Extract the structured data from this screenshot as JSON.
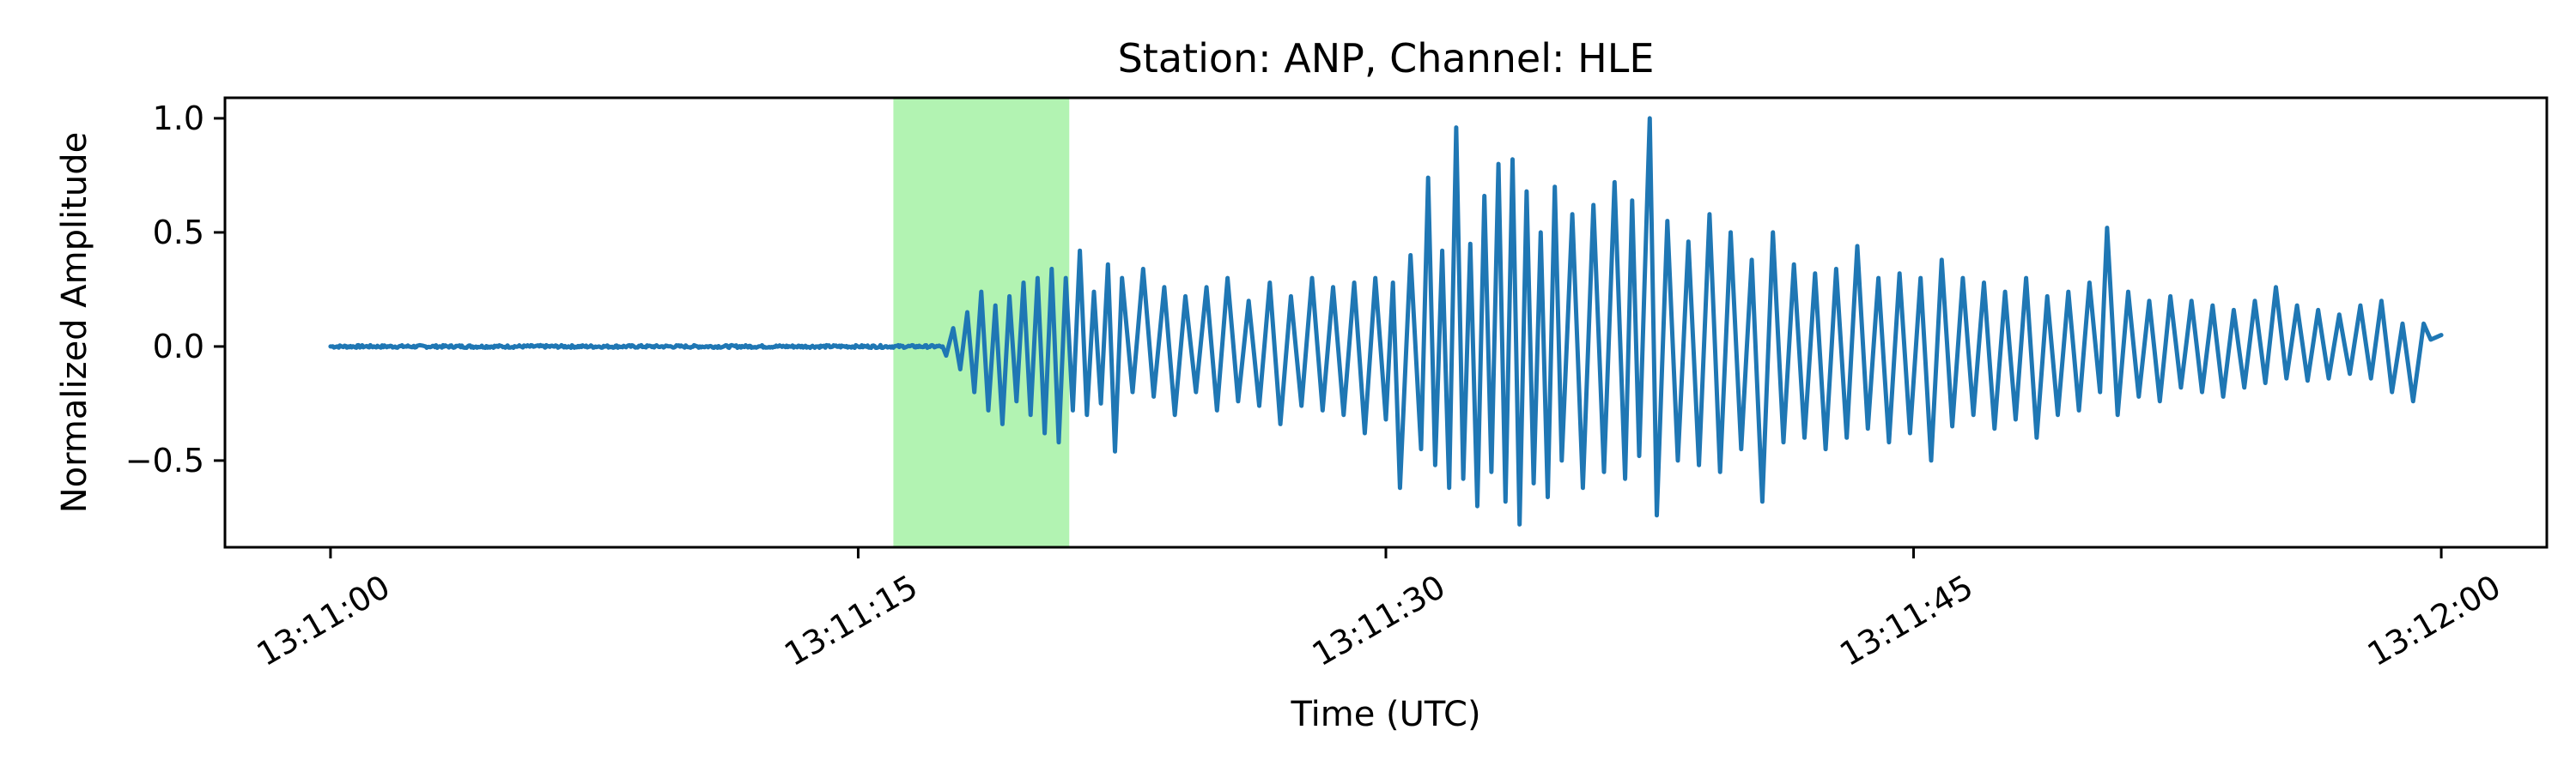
{
  "chart_data": {
    "type": "line",
    "title": "Station: ANP, Channel: HLE",
    "xlabel": "Time (UTC)",
    "ylabel": "Normalized Amplitude",
    "x_start": "13:11:00",
    "x_end": "13:12:00",
    "xlim": [
      "13:10:57",
      "13:12:03"
    ],
    "ylim": [
      -0.88,
      1.09
    ],
    "x_ticks": [
      "13:11:00",
      "13:11:15",
      "13:11:30",
      "13:11:45",
      "13:12:00"
    ],
    "y_ticks": [
      -0.5,
      0.0,
      0.5,
      1.0
    ],
    "y_tick_labels": [
      "−0.5",
      "0.0",
      "0.5",
      "1.0"
    ],
    "highlight_span": {
      "start": "13:11:16",
      "end": "13:11:21",
      "color": "#b2f3b2"
    },
    "series_color": "#1f77b4",
    "grid": false,
    "series": [
      {
        "points": [
          [
            "13:11:00",
            0.0
          ],
          [
            "13:11:05",
            0.0
          ],
          [
            "13:11:10",
            0.0
          ],
          [
            "13:11:15",
            0.0
          ],
          [
            "13:11:17.4",
            0.0
          ],
          [
            "13:11:17.5",
            -0.04
          ],
          [
            "13:11:17.7",
            0.08
          ],
          [
            "13:11:17.9",
            -0.1
          ],
          [
            "13:11:18.1",
            0.15
          ],
          [
            "13:11:18.3",
            -0.2
          ],
          [
            "13:11:18.5",
            0.24
          ],
          [
            "13:11:18.7",
            -0.28
          ],
          [
            "13:11:18.9",
            0.18
          ],
          [
            "13:11:19.1",
            -0.34
          ],
          [
            "13:11:19.3",
            0.22
          ],
          [
            "13:11:19.5",
            -0.24
          ],
          [
            "13:11:19.7",
            0.28
          ],
          [
            "13:11:19.9",
            -0.3
          ],
          [
            "13:11:20.1",
            0.3
          ],
          [
            "13:11:20.3",
            -0.38
          ],
          [
            "13:11:20.5",
            0.34
          ],
          [
            "13:11:20.7",
            -0.42
          ],
          [
            "13:11:20.9",
            0.3
          ],
          [
            "13:11:21.1",
            -0.28
          ],
          [
            "13:11:21.3",
            0.42
          ],
          [
            "13:11:21.5",
            -0.3
          ],
          [
            "13:11:21.7",
            0.24
          ],
          [
            "13:11:21.9",
            -0.25
          ],
          [
            "13:11:22.1",
            0.36
          ],
          [
            "13:11:22.3",
            -0.46
          ],
          [
            "13:11:22.5",
            0.3
          ],
          [
            "13:11:22.8",
            -0.2
          ],
          [
            "13:11:23.1",
            0.34
          ],
          [
            "13:11:23.4",
            -0.22
          ],
          [
            "13:11:23.7",
            0.26
          ],
          [
            "13:11:24.0",
            -0.3
          ],
          [
            "13:11:24.3",
            0.22
          ],
          [
            "13:11:24.6",
            -0.2
          ],
          [
            "13:11:24.9",
            0.26
          ],
          [
            "13:11:25.2",
            -0.28
          ],
          [
            "13:11:25.5",
            0.3
          ],
          [
            "13:11:25.8",
            -0.24
          ],
          [
            "13:11:26.1",
            0.2
          ],
          [
            "13:11:26.4",
            -0.26
          ],
          [
            "13:11:26.7",
            0.28
          ],
          [
            "13:11:27.0",
            -0.34
          ],
          [
            "13:11:27.3",
            0.22
          ],
          [
            "13:11:27.6",
            -0.26
          ],
          [
            "13:11:27.9",
            0.3
          ],
          [
            "13:11:28.2",
            -0.28
          ],
          [
            "13:11:28.5",
            0.26
          ],
          [
            "13:11:28.8",
            -0.3
          ],
          [
            "13:11:29.1",
            0.28
          ],
          [
            "13:11:29.4",
            -0.38
          ],
          [
            "13:11:29.7",
            0.3
          ],
          [
            "13:11:30.0",
            -0.32
          ],
          [
            "13:11:30.2",
            0.28
          ],
          [
            "13:11:30.4",
            -0.62
          ],
          [
            "13:11:30.7",
            0.4
          ],
          [
            "13:11:31.0",
            -0.45
          ],
          [
            "13:11:31.2",
            0.74
          ],
          [
            "13:11:31.4",
            -0.52
          ],
          [
            "13:11:31.6",
            0.42
          ],
          [
            "13:11:31.8",
            -0.62
          ],
          [
            "13:11:32.0",
            0.96
          ],
          [
            "13:11:32.2",
            -0.58
          ],
          [
            "13:11:32.4",
            0.45
          ],
          [
            "13:11:32.6",
            -0.7
          ],
          [
            "13:11:32.8",
            0.66
          ],
          [
            "13:11:33.0",
            -0.55
          ],
          [
            "13:11:33.2",
            0.8
          ],
          [
            "13:11:33.4",
            -0.68
          ],
          [
            "13:11:33.6",
            0.82
          ],
          [
            "13:11:33.8",
            -0.78
          ],
          [
            "13:11:34.0",
            0.68
          ],
          [
            "13:11:34.2",
            -0.6
          ],
          [
            "13:11:34.4",
            0.5
          ],
          [
            "13:11:34.6",
            -0.66
          ],
          [
            "13:11:34.8",
            0.7
          ],
          [
            "13:11:35.0",
            -0.5
          ],
          [
            "13:11:35.3",
            0.58
          ],
          [
            "13:11:35.6",
            -0.62
          ],
          [
            "13:11:35.9",
            0.62
          ],
          [
            "13:11:36.2",
            -0.55
          ],
          [
            "13:11:36.5",
            0.72
          ],
          [
            "13:11:36.8",
            -0.58
          ],
          [
            "13:11:37.0",
            0.64
          ],
          [
            "13:11:37.2",
            -0.48
          ],
          [
            "13:11:37.5",
            1.0
          ],
          [
            "13:11:37.7",
            -0.74
          ],
          [
            "13:11:38.0",
            0.55
          ],
          [
            "13:11:38.3",
            -0.5
          ],
          [
            "13:11:38.6",
            0.46
          ],
          [
            "13:11:38.9",
            -0.52
          ],
          [
            "13:11:39.2",
            0.58
          ],
          [
            "13:11:39.5",
            -0.55
          ],
          [
            "13:11:39.8",
            0.5
          ],
          [
            "13:11:40.1",
            -0.45
          ],
          [
            "13:11:40.4",
            0.38
          ],
          [
            "13:11:40.7",
            -0.68
          ],
          [
            "13:11:41.0",
            0.5
          ],
          [
            "13:11:41.3",
            -0.42
          ],
          [
            "13:11:41.6",
            0.36
          ],
          [
            "13:11:41.9",
            -0.4
          ],
          [
            "13:11:42.2",
            0.32
          ],
          [
            "13:11:42.5",
            -0.45
          ],
          [
            "13:11:42.8",
            0.34
          ],
          [
            "13:11:43.1",
            -0.4
          ],
          [
            "13:11:43.4",
            0.44
          ],
          [
            "13:11:43.7",
            -0.36
          ],
          [
            "13:11:44.0",
            0.3
          ],
          [
            "13:11:44.3",
            -0.42
          ],
          [
            "13:11:44.6",
            0.32
          ],
          [
            "13:11:44.9",
            -0.38
          ],
          [
            "13:11:45.2",
            0.3
          ],
          [
            "13:11:45.5",
            -0.5
          ],
          [
            "13:11:45.8",
            0.38
          ],
          [
            "13:11:46.1",
            -0.35
          ],
          [
            "13:11:46.4",
            0.3
          ],
          [
            "13:11:46.7",
            -0.3
          ],
          [
            "13:11:47.0",
            0.28
          ],
          [
            "13:11:47.3",
            -0.36
          ],
          [
            "13:11:47.6",
            0.24
          ],
          [
            "13:11:47.9",
            -0.32
          ],
          [
            "13:11:48.2",
            0.3
          ],
          [
            "13:11:48.5",
            -0.4
          ],
          [
            "13:11:48.8",
            0.22
          ],
          [
            "13:11:49.1",
            -0.3
          ],
          [
            "13:11:49.4",
            0.24
          ],
          [
            "13:11:49.7",
            -0.28
          ],
          [
            "13:11:50.0",
            0.28
          ],
          [
            "13:11:50.3",
            -0.2
          ],
          [
            "13:11:50.5",
            0.52
          ],
          [
            "13:11:50.8",
            -0.3
          ],
          [
            "13:11:51.1",
            0.24
          ],
          [
            "13:11:51.4",
            -0.22
          ],
          [
            "13:11:51.7",
            0.2
          ],
          [
            "13:11:52.0",
            -0.24
          ],
          [
            "13:11:52.3",
            0.22
          ],
          [
            "13:11:52.6",
            -0.18
          ],
          [
            "13:11:52.9",
            0.2
          ],
          [
            "13:11:53.2",
            -0.2
          ],
          [
            "13:11:53.5",
            0.18
          ],
          [
            "13:11:53.8",
            -0.22
          ],
          [
            "13:11:54.1",
            0.16
          ],
          [
            "13:11:54.4",
            -0.18
          ],
          [
            "13:11:54.7",
            0.2
          ],
          [
            "13:11:55.0",
            -0.16
          ],
          [
            "13:11:55.3",
            0.26
          ],
          [
            "13:11:55.6",
            -0.14
          ],
          [
            "13:11:55.9",
            0.18
          ],
          [
            "13:11:56.2",
            -0.15
          ],
          [
            "13:11:56.5",
            0.16
          ],
          [
            "13:11:56.8",
            -0.14
          ],
          [
            "13:11:57.1",
            0.14
          ],
          [
            "13:11:57.4",
            -0.12
          ],
          [
            "13:11:57.7",
            0.18
          ],
          [
            "13:11:58.0",
            -0.14
          ],
          [
            "13:11:58.3",
            0.2
          ],
          [
            "13:11:58.6",
            -0.2
          ],
          [
            "13:11:58.9",
            0.1
          ],
          [
            "13:11:59.2",
            -0.24
          ],
          [
            "13:11:59.5",
            0.1
          ],
          [
            "13:11:59.7",
            0.03
          ],
          [
            "13:12:00",
            0.05
          ]
        ]
      }
    ]
  }
}
